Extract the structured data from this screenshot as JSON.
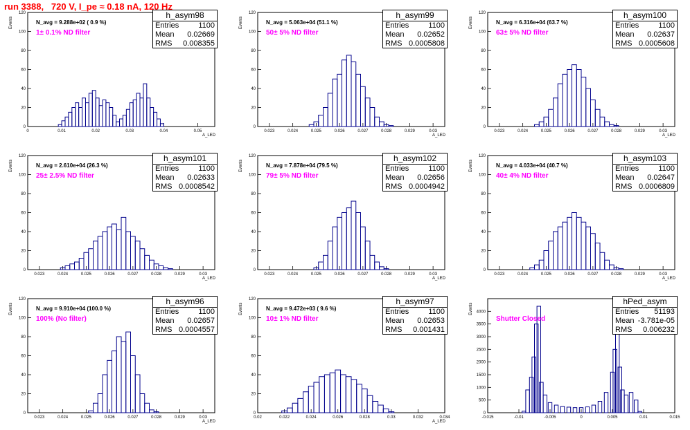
{
  "page": {
    "title": "run 3388,   720 V, I_pe ≈ 0.18 nA, 120 Hz"
  },
  "colors": {
    "title": "#ff0000",
    "hist": "#00008b",
    "filter_label": "#ff00ff"
  },
  "chart_data": [
    {
      "type": "bar",
      "name": "h_asym98",
      "entries": "1100",
      "mean": "0.02669",
      "rms": "0.008355",
      "navg": "N_avg = 9.288e+02 ( 0.9 %)",
      "filter": "1± 0.1% ND filter",
      "xlabel": "A_LED",
      "ylabel": "Events",
      "xlim": [
        0.0,
        0.055
      ],
      "ylim": [
        0,
        120
      ],
      "xticks": [
        "0",
        "0.01",
        "0.02",
        "0.03",
        "0.04",
        "0.05"
      ],
      "xtick_values": [
        0,
        0.01,
        0.02,
        0.03,
        0.04,
        0.05
      ],
      "yticks": [
        "0",
        "20",
        "40",
        "60",
        "80",
        "100",
        "120"
      ],
      "ytick_values": [
        0,
        20,
        40,
        60,
        80,
        100,
        120
      ],
      "x": [
        0.0095,
        0.0105,
        0.0115,
        0.0125,
        0.0135,
        0.0145,
        0.0155,
        0.0165,
        0.0175,
        0.0185,
        0.0195,
        0.0205,
        0.0215,
        0.0225,
        0.0235,
        0.0245,
        0.0255,
        0.0265,
        0.0275,
        0.0285,
        0.0295,
        0.0305,
        0.0315,
        0.0325,
        0.0335,
        0.0345,
        0.0355,
        0.0365,
        0.0375,
        0.0385,
        0.0395
      ],
      "values": [
        2,
        6,
        10,
        15,
        20,
        25,
        20,
        30,
        25,
        35,
        38,
        30,
        22,
        28,
        25,
        20,
        12,
        5,
        8,
        12,
        18,
        25,
        28,
        35,
        30,
        45,
        30,
        20,
        15,
        8,
        3
      ]
    },
    {
      "type": "bar",
      "name": "h_asym99",
      "entries": "1100",
      "mean": "0.02652",
      "rms": "0.0005808",
      "navg": "N_avg = 5.063e+04 (51.1 %)",
      "filter": "50± 5% ND filter",
      "xlabel": "A_LED",
      "ylabel": "Events",
      "xlim": [
        0.0225,
        0.0305
      ],
      "ylim": [
        0,
        120
      ],
      "xticks": [
        "0.023",
        "0.024",
        "0.025",
        "0.026",
        "0.027",
        "0.028",
        "0.029",
        "0.03"
      ],
      "xtick_values": [
        0.023,
        0.024,
        0.025,
        0.026,
        0.027,
        0.028,
        0.029,
        0.03
      ],
      "yticks": [
        "0",
        "20",
        "40",
        "60",
        "80",
        "100",
        "120"
      ],
      "ytick_values": [
        0,
        20,
        40,
        60,
        80,
        100,
        120
      ],
      "x": [
        0.0248,
        0.025,
        0.0252,
        0.0254,
        0.0256,
        0.0258,
        0.026,
        0.0262,
        0.0264,
        0.0266,
        0.0268,
        0.027,
        0.0272,
        0.0274,
        0.0276,
        0.0278,
        0.028,
        0.0282
      ],
      "values": [
        2,
        5,
        12,
        20,
        35,
        50,
        55,
        70,
        75,
        68,
        55,
        42,
        30,
        20,
        10,
        5,
        2,
        1
      ]
    },
    {
      "type": "bar",
      "name": "h_asym100",
      "entries": "1100",
      "mean": "0.02637",
      "rms": "0.0005608",
      "navg": "N_avg = 6.316e+04 (63.7 %)",
      "filter": "63± 5% ND filter",
      "xlabel": "A_LED",
      "ylabel": "Events",
      "xlim": [
        0.0225,
        0.0305
      ],
      "ylim": [
        0,
        120
      ],
      "xticks": [
        "0.023",
        "0.024",
        "0.025",
        "0.026",
        "0.027",
        "0.028",
        "0.029",
        "0.03"
      ],
      "xtick_values": [
        0.023,
        0.024,
        0.025,
        0.026,
        0.027,
        0.028,
        0.029,
        0.03
      ],
      "yticks": [
        "0",
        "20",
        "40",
        "60",
        "80",
        "100",
        "120"
      ],
      "ytick_values": [
        0,
        20,
        40,
        60,
        80,
        100,
        120
      ],
      "x": [
        0.0246,
        0.0248,
        0.025,
        0.0252,
        0.0254,
        0.0256,
        0.0258,
        0.026,
        0.0262,
        0.0264,
        0.0266,
        0.0268,
        0.027,
        0.0272,
        0.0274,
        0.0276,
        0.0278,
        0.028
      ],
      "values": [
        2,
        5,
        10,
        18,
        30,
        45,
        55,
        60,
        65,
        60,
        52,
        40,
        28,
        18,
        10,
        5,
        2,
        1
      ]
    },
    {
      "type": "bar",
      "name": "h_asym101",
      "entries": "1100",
      "mean": "0.02633",
      "rms": "0.0008542",
      "navg": "N_avg = 2.610e+04 (26.3 %)",
      "filter": "25± 2.5% ND filter",
      "xlabel": "A_LED",
      "ylabel": "Events",
      "xlim": [
        0.0225,
        0.0305
      ],
      "ylim": [
        0,
        120
      ],
      "xticks": [
        "0.023",
        "0.024",
        "0.025",
        "0.026",
        "0.027",
        "0.028",
        "0.029",
        "0.03"
      ],
      "xtick_values": [
        0.023,
        0.024,
        0.025,
        0.026,
        0.027,
        0.028,
        0.029,
        0.03
      ],
      "yticks": [
        "0",
        "20",
        "40",
        "60",
        "80",
        "100",
        "120"
      ],
      "ytick_values": [
        0,
        20,
        40,
        60,
        80,
        100,
        120
      ],
      "x": [
        0.024,
        0.0242,
        0.0244,
        0.0246,
        0.0248,
        0.025,
        0.0252,
        0.0254,
        0.0256,
        0.0258,
        0.026,
        0.0262,
        0.0264,
        0.0266,
        0.0268,
        0.027,
        0.0272,
        0.0274,
        0.0276,
        0.0278,
        0.028,
        0.0282,
        0.0284,
        0.0286
      ],
      "values": [
        2,
        4,
        6,
        8,
        12,
        18,
        22,
        30,
        35,
        40,
        45,
        48,
        42,
        55,
        40,
        35,
        30,
        22,
        15,
        10,
        6,
        4,
        2,
        1
      ]
    },
    {
      "type": "bar",
      "name": "h_asym102",
      "entries": "1100",
      "mean": "0.02656",
      "rms": "0.0004942",
      "navg": "N_avg = 7.878e+04 (79.5 %)",
      "filter": "79± 5% ND filter",
      "xlabel": "A_LED",
      "ylabel": "Events",
      "xlim": [
        0.0225,
        0.0305
      ],
      "ylim": [
        0,
        120
      ],
      "xticks": [
        "0.023",
        "0.024",
        "0.025",
        "0.026",
        "0.027",
        "0.028",
        "0.029",
        "0.03"
      ],
      "xtick_values": [
        0.023,
        0.024,
        0.025,
        0.026,
        0.027,
        0.028,
        0.029,
        0.03
      ],
      "yticks": [
        "0",
        "20",
        "40",
        "60",
        "80",
        "100",
        "120"
      ],
      "ytick_values": [
        0,
        20,
        40,
        60,
        80,
        100,
        120
      ],
      "x": [
        0.025,
        0.0252,
        0.0254,
        0.0256,
        0.0258,
        0.026,
        0.0262,
        0.0264,
        0.0266,
        0.0268,
        0.027,
        0.0272,
        0.0274,
        0.0276,
        0.0278,
        0.028
      ],
      "values": [
        2,
        8,
        15,
        30,
        45,
        55,
        60,
        65,
        72,
        60,
        45,
        30,
        15,
        8,
        3,
        1
      ]
    },
    {
      "type": "bar",
      "name": "h_asym103",
      "entries": "1100",
      "mean": "0.02647",
      "rms": "0.0006809",
      "navg": "N_avg = 4.033e+04 (40.7 %)",
      "filter": "40± 4% ND filter",
      "xlabel": "A_LED",
      "ylabel": "Events",
      "xlim": [
        0.0225,
        0.0305
      ],
      "ylim": [
        0,
        120
      ],
      "xticks": [
        "0.023",
        "0.024",
        "0.025",
        "0.026",
        "0.027",
        "0.028",
        "0.029",
        "0.03"
      ],
      "xtick_values": [
        0.023,
        0.024,
        0.025,
        0.026,
        0.027,
        0.028,
        0.029,
        0.03
      ],
      "yticks": [
        "0",
        "20",
        "40",
        "60",
        "80",
        "100",
        "120"
      ],
      "ytick_values": [
        0,
        20,
        40,
        60,
        80,
        100,
        120
      ],
      "x": [
        0.0244,
        0.0246,
        0.0248,
        0.025,
        0.0252,
        0.0254,
        0.0256,
        0.0258,
        0.026,
        0.0262,
        0.0264,
        0.0266,
        0.0268,
        0.027,
        0.0272,
        0.0274,
        0.0276,
        0.0278,
        0.028,
        0.0282
      ],
      "values": [
        2,
        5,
        10,
        20,
        30,
        40,
        45,
        50,
        55,
        60,
        55,
        50,
        45,
        38,
        28,
        18,
        10,
        5,
        2,
        1
      ]
    },
    {
      "type": "bar",
      "name": "h_asym96",
      "entries": "1100",
      "mean": "0.02657",
      "rms": "0.0004557",
      "navg": "N_avg = 9.910e+04 (100.0 %)",
      "filter": "100% (No filter)",
      "xlabel": "A_LED",
      "ylabel": "Events",
      "xlim": [
        0.0225,
        0.0305
      ],
      "ylim": [
        0,
        120
      ],
      "xticks": [
        "0.023",
        "0.024",
        "0.025",
        "0.026",
        "0.027",
        "0.028",
        "0.029",
        "0.03"
      ],
      "xtick_values": [
        0.023,
        0.024,
        0.025,
        0.026,
        0.027,
        0.028,
        0.029,
        0.03
      ],
      "yticks": [
        "0",
        "20",
        "40",
        "60",
        "80",
        "100",
        "120"
      ],
      "ytick_values": [
        0,
        20,
        40,
        60,
        80,
        100,
        120
      ],
      "x": [
        0.0252,
        0.0254,
        0.0256,
        0.0258,
        0.026,
        0.0262,
        0.0264,
        0.0266,
        0.0268,
        0.027,
        0.0272,
        0.0274,
        0.0276,
        0.0278,
        0.028
      ],
      "values": [
        2,
        10,
        20,
        40,
        55,
        65,
        80,
        75,
        85,
        60,
        40,
        20,
        10,
        3,
        1
      ]
    },
    {
      "type": "bar",
      "name": "h_asym97",
      "entries": "1100",
      "mean": "0.02653",
      "rms": "0.001431",
      "navg": "N_avg = 9.472e+03 ( 9.6 %)",
      "filter": "10± 1% ND filter",
      "xlabel": "A_LED",
      "ylabel": "Events",
      "xlim": [
        0.02,
        0.034
      ],
      "ylim": [
        0,
        120
      ],
      "xticks": [
        "0.02",
        "0.022",
        "0.024",
        "0.026",
        "0.028",
        "0.03",
        "0.032",
        "0.034"
      ],
      "xtick_values": [
        0.02,
        0.022,
        0.024,
        0.026,
        0.028,
        0.03,
        0.032,
        0.034
      ],
      "yticks": [
        "0",
        "20",
        "40",
        "60",
        "80",
        "100",
        "120"
      ],
      "ytick_values": [
        0,
        20,
        40,
        60,
        80,
        100,
        120
      ],
      "x": [
        0.022,
        0.0224,
        0.0228,
        0.0232,
        0.0236,
        0.024,
        0.0244,
        0.0248,
        0.0252,
        0.0256,
        0.026,
        0.0264,
        0.0268,
        0.0272,
        0.0276,
        0.028,
        0.0284,
        0.0288,
        0.0292,
        0.0296,
        0.03
      ],
      "values": [
        2,
        5,
        10,
        15,
        22,
        28,
        32,
        38,
        40,
        42,
        45,
        40,
        38,
        35,
        30,
        25,
        18,
        12,
        8,
        4,
        1
      ]
    },
    {
      "type": "bar",
      "name": "hPed_asym",
      "entries": "51193",
      "mean": "-3.781e-05",
      "rms": "0.006232",
      "navg": "",
      "filter": "Shutter Closed",
      "xlabel": "",
      "ylabel": "Events",
      "xlim": [
        -0.015,
        0.015
      ],
      "ylim": [
        0,
        4500
      ],
      "xticks": [
        "-0.015",
        "-0.01",
        "-0.005",
        "0",
        "0.005",
        "0.01",
        "0.015"
      ],
      "xtick_values": [
        -0.015,
        -0.01,
        -0.005,
        0,
        0.005,
        0.01,
        0.015
      ],
      "yticks": [
        "0",
        "500",
        "1000",
        "1500",
        "2000",
        "2500",
        "3000",
        "3500",
        "4000"
      ],
      "ytick_values": [
        0,
        500,
        1000,
        1500,
        2000,
        2500,
        3000,
        3500,
        4000
      ],
      "x": [
        -0.0092,
        -0.0086,
        -0.008,
        -0.0076,
        -0.0072,
        -0.0068,
        -0.0064,
        -0.0058,
        -0.005,
        -0.004,
        -0.003,
        -0.002,
        -0.001,
        0.0,
        0.001,
        0.002,
        0.003,
        0.004,
        0.005,
        0.0054,
        0.0058,
        0.0062,
        0.0066,
        0.0072,
        0.008,
        0.0088,
        0.0094
      ],
      "values": [
        60,
        900,
        1400,
        2200,
        3500,
        4200,
        1200,
        700,
        400,
        300,
        250,
        220,
        200,
        200,
        230,
        300,
        450,
        800,
        1600,
        2500,
        3100,
        1800,
        900,
        700,
        800,
        500,
        50
      ]
    }
  ]
}
